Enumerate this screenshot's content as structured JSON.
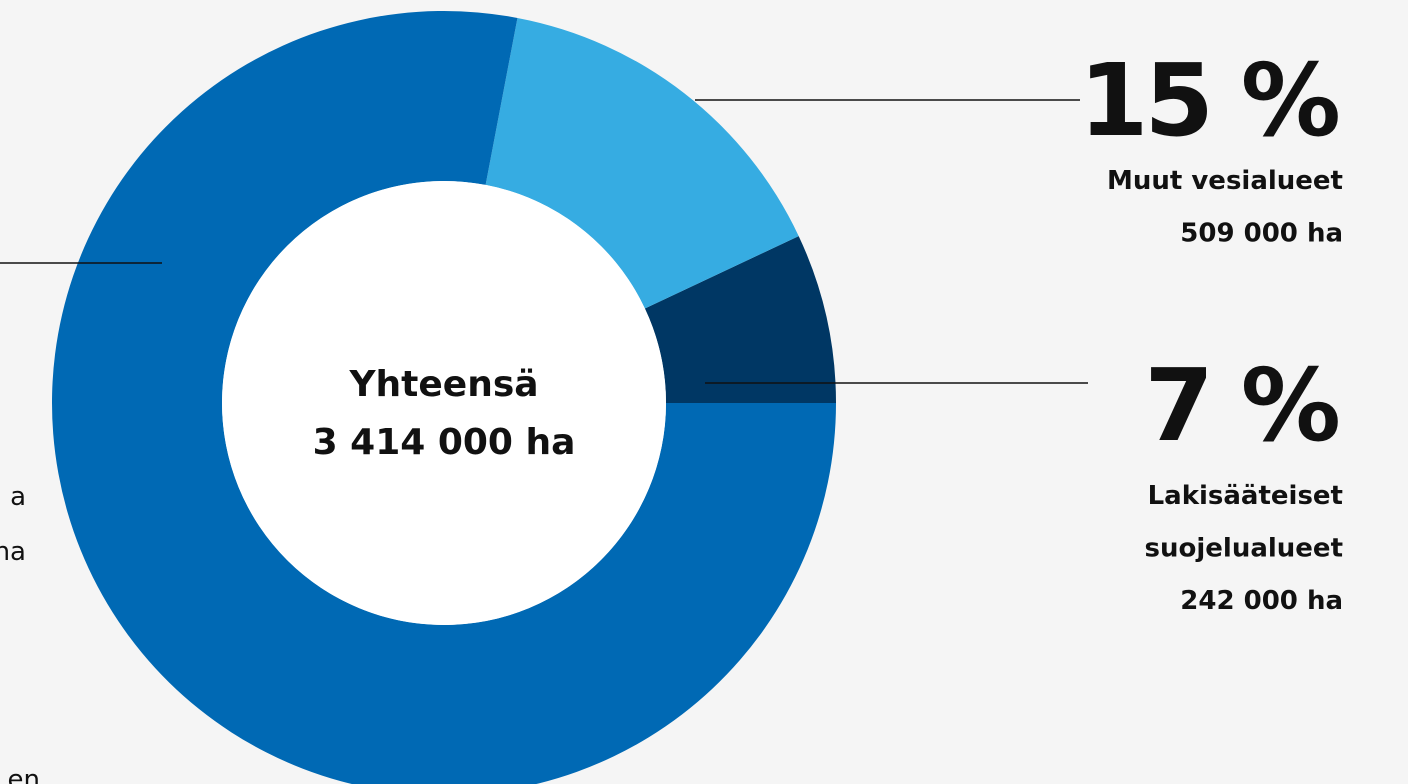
{
  "chart_data": {
    "type": "donut",
    "categories": [
      [
        "Lakisääteiset",
        "suojelualueet"
      ],
      [
        "Muut vesialueet"
      ],
      null
    ],
    "values": [
      7,
      15,
      78
    ],
    "value_labels": [
      "7 %",
      "15 %",
      null
    ],
    "areas": [
      "242 000 ha",
      "509 000 ha",
      null
    ],
    "colors": [
      "#003764",
      "#36ace2",
      "#0069b4"
    ],
    "center_label": [
      "Yhteensä",
      "3 414 000 ha"
    ],
    "left_fragments": [
      "a",
      "na",
      "en"
    ]
  }
}
